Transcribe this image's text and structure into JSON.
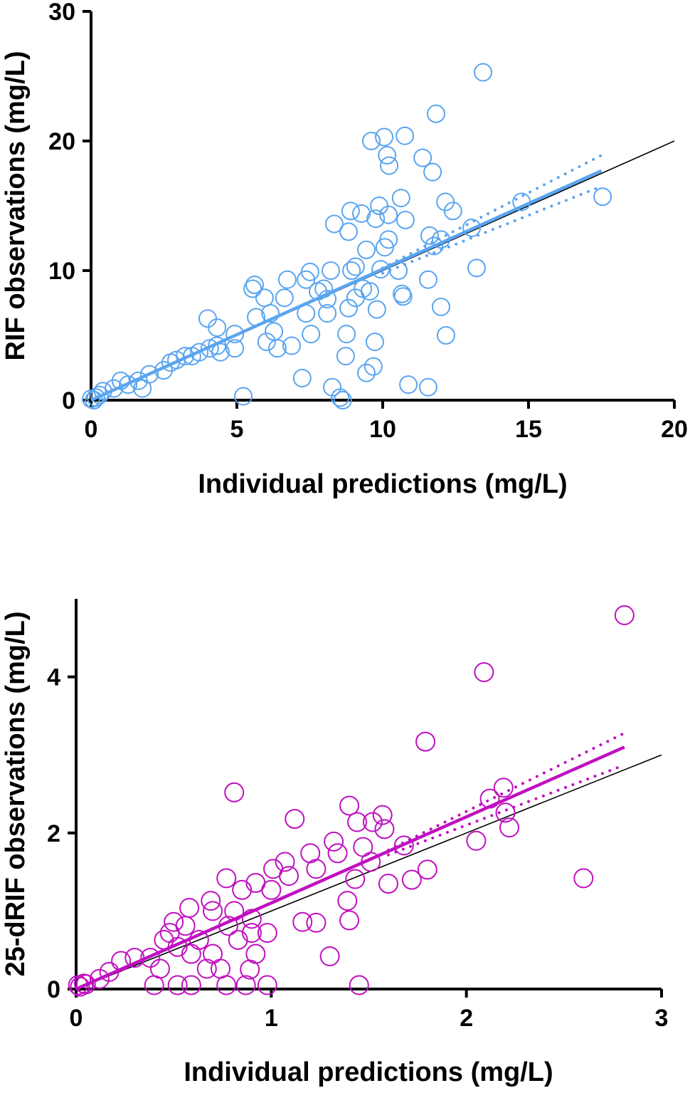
{
  "chart_data": [
    {
      "type": "scatter",
      "xlabel": "Individual predictions (mg/L)",
      "ylabel": "RIF observations (mg/L)",
      "xlim": [
        0,
        20
      ],
      "ylim": [
        0,
        30
      ],
      "xticks": [
        "0",
        "5",
        "10",
        "15",
        "20"
      ],
      "yticks": [
        "0",
        "10",
        "20",
        "30"
      ],
      "color": "#5aa5f0",
      "grid": false,
      "identity_line": [
        [
          0,
          0
        ],
        [
          20,
          20
        ]
      ],
      "fit_line": [
        [
          0,
          0
        ],
        [
          17.5,
          17.7
        ]
      ],
      "fit_ci_upper": [
        [
          10,
          10.2
        ],
        [
          17.5,
          18.9
        ]
      ],
      "fit_ci_lower": [
        [
          10,
          9.8
        ],
        [
          17.5,
          16.5
        ]
      ],
      "points": [
        [
          13.44,
          25.3
        ],
        [
          11.83,
          22.1
        ],
        [
          10.76,
          20.4
        ],
        [
          10.05,
          20.3
        ],
        [
          9.61,
          20.0
        ],
        [
          10.15,
          18.9
        ],
        [
          10.22,
          18.1
        ],
        [
          11.37,
          18.7
        ],
        [
          11.71,
          17.6
        ],
        [
          17.54,
          15.7
        ],
        [
          14.76,
          15.3
        ],
        [
          10.63,
          15.6
        ],
        [
          9.88,
          15.0
        ],
        [
          12.15,
          15.3
        ],
        [
          12.41,
          14.6
        ],
        [
          8.9,
          14.6
        ],
        [
          9.27,
          14.4
        ],
        [
          10.2,
          14.3
        ],
        [
          9.76,
          14.0
        ],
        [
          10.78,
          13.9
        ],
        [
          8.34,
          13.6
        ],
        [
          8.83,
          13.0
        ],
        [
          13.05,
          13.3
        ],
        [
          11.61,
          12.7
        ],
        [
          10.2,
          12.4
        ],
        [
          12.0,
          12.4
        ],
        [
          11.76,
          11.9
        ],
        [
          10.07,
          11.8
        ],
        [
          9.44,
          11.6
        ],
        [
          13.22,
          10.2
        ],
        [
          9.07,
          10.3
        ],
        [
          8.93,
          10.0
        ],
        [
          9.93,
          10.1
        ],
        [
          10.54,
          10.0
        ],
        [
          8.22,
          10.0
        ],
        [
          7.51,
          9.9
        ],
        [
          6.73,
          9.3
        ],
        [
          7.37,
          9.3
        ],
        [
          11.56,
          9.3
        ],
        [
          5.61,
          8.9
        ],
        [
          5.54,
          8.6
        ],
        [
          7.98,
          8.6
        ],
        [
          9.32,
          8.6
        ],
        [
          9.56,
          8.4
        ],
        [
          7.78,
          8.4
        ],
        [
          10.66,
          8.2
        ],
        [
          10.7,
          8.0
        ],
        [
          6.63,
          7.9
        ],
        [
          5.95,
          7.9
        ],
        [
          8.1,
          7.8
        ],
        [
          9.07,
          7.9
        ],
        [
          6.15,
          6.7
        ],
        [
          4.0,
          6.3
        ],
        [
          7.37,
          6.7
        ],
        [
          9.8,
          7.0
        ],
        [
          12.0,
          7.2
        ],
        [
          4.32,
          5.6
        ],
        [
          8.83,
          7.1
        ],
        [
          8.1,
          6.7
        ],
        [
          5.66,
          6.4
        ],
        [
          4.93,
          5.1
        ],
        [
          6.27,
          5.3
        ],
        [
          8.76,
          5.1
        ],
        [
          12.17,
          5.0
        ],
        [
          7.54,
          5.1
        ],
        [
          9.73,
          4.5
        ],
        [
          6.02,
          4.5
        ],
        [
          6.88,
          4.2
        ],
        [
          6.39,
          4.0
        ],
        [
          4.32,
          4.2
        ],
        [
          4.93,
          4.0
        ],
        [
          8.73,
          3.4
        ],
        [
          4.07,
          4.0
        ],
        [
          3.71,
          3.7
        ],
        [
          3.22,
          3.4
        ],
        [
          2.73,
          2.9
        ],
        [
          9.68,
          2.6
        ],
        [
          9.44,
          2.1
        ],
        [
          7.24,
          1.7
        ],
        [
          2.49,
          2.3
        ],
        [
          2.0,
          2.0
        ],
        [
          1.63,
          1.5
        ],
        [
          1.27,
          1.2
        ],
        [
          0.78,
          0.9
        ],
        [
          10.88,
          1.2
        ],
        [
          11.56,
          1.0
        ],
        [
          8.27,
          1.0
        ],
        [
          5.22,
          0.3
        ],
        [
          8.54,
          0.2
        ],
        [
          8.63,
          0.0
        ],
        [
          0.29,
          0.4
        ],
        [
          0.0,
          0.1
        ],
        [
          0.17,
          0.2
        ],
        [
          0.41,
          0.7
        ],
        [
          1.76,
          0.9
        ],
        [
          1.02,
          1.5
        ],
        [
          2.93,
          3.1
        ],
        [
          3.46,
          3.4
        ],
        [
          4.44,
          3.7
        ],
        [
          0.1,
          0.0
        ]
      ]
    },
    {
      "type": "scatter",
      "xlabel": "Individual predictions (mg/L)",
      "ylabel": "25-dRIF observations (mg/L)",
      "xlim": [
        0,
        3
      ],
      "ylim": [
        0,
        5
      ],
      "xticks": [
        "0",
        "1",
        "2",
        "3"
      ],
      "yticks": [
        "0",
        "2",
        "4"
      ],
      "color": "#c010c0",
      "grid": false,
      "identity_line": [
        [
          0,
          0
        ],
        [
          3,
          3
        ]
      ],
      "fit_line": [
        [
          0,
          0
        ],
        [
          2.81,
          3.1
        ]
      ],
      "fit_ci_upper": [
        [
          1.6,
          1.78
        ],
        [
          2.81,
          3.28
        ]
      ],
      "fit_ci_lower": [
        [
          1.6,
          1.72
        ],
        [
          2.81,
          2.87
        ]
      ],
      "points": [
        [
          2.81,
          4.79
        ],
        [
          2.09,
          4.06
        ],
        [
          1.79,
          3.17
        ],
        [
          0.81,
          2.52
        ],
        [
          2.19,
          2.58
        ],
        [
          2.12,
          2.44
        ],
        [
          2.2,
          2.26
        ],
        [
          2.22,
          2.07
        ],
        [
          2.05,
          1.9
        ],
        [
          2.6,
          1.42
        ],
        [
          1.8,
          1.53
        ],
        [
          1.72,
          1.4
        ],
        [
          1.68,
          1.84
        ],
        [
          1.6,
          1.35
        ],
        [
          1.58,
          2.05
        ],
        [
          1.57,
          2.23
        ],
        [
          1.52,
          2.14
        ],
        [
          1.4,
          2.35
        ],
        [
          1.44,
          2.14
        ],
        [
          1.12,
          2.18
        ],
        [
          1.32,
          1.89
        ],
        [
          1.34,
          1.74
        ],
        [
          1.47,
          1.82
        ],
        [
          1.2,
          1.74
        ],
        [
          1.23,
          1.54
        ],
        [
          1.51,
          1.63
        ],
        [
          1.43,
          1.41
        ],
        [
          1.39,
          1.13
        ],
        [
          1.4,
          0.88
        ],
        [
          1.3,
          0.42
        ],
        [
          1.45,
          0.05
        ],
        [
          1.16,
          0.86
        ],
        [
          1.23,
          0.85
        ],
        [
          1.07,
          1.63
        ],
        [
          1.01,
          1.54
        ],
        [
          1.09,
          1.45
        ],
        [
          1.0,
          1.27
        ],
        [
          0.92,
          1.36
        ],
        [
          0.85,
          1.27
        ],
        [
          0.77,
          1.42
        ],
        [
          0.69,
          1.13
        ],
        [
          0.58,
          1.04
        ],
        [
          0.7,
          1.0
        ],
        [
          0.81,
          1.0
        ],
        [
          0.9,
          0.9
        ],
        [
          0.98,
          0.72
        ],
        [
          0.92,
          0.45
        ],
        [
          0.89,
          0.25
        ],
        [
          0.98,
          0.05
        ],
        [
          0.87,
          0.05
        ],
        [
          0.77,
          0.05
        ],
        [
          0.74,
          0.26
        ],
        [
          0.7,
          0.45
        ],
        [
          0.63,
          0.63
        ],
        [
          0.56,
          0.81
        ],
        [
          0.48,
          0.72
        ],
        [
          0.45,
          0.63
        ],
        [
          0.52,
          0.54
        ],
        [
          0.59,
          0.45
        ],
        [
          0.67,
          0.26
        ],
        [
          0.59,
          0.05
        ],
        [
          0.52,
          0.05
        ],
        [
          0.4,
          0.05
        ],
        [
          0.38,
          0.4
        ],
        [
          0.3,
          0.4
        ],
        [
          0.23,
          0.36
        ],
        [
          0.17,
          0.22
        ],
        [
          0.12,
          0.13
        ],
        [
          0.05,
          0.06
        ],
        [
          0.01,
          0.05
        ],
        [
          0.43,
          0.26
        ],
        [
          0.5,
          0.86
        ],
        [
          0.78,
          0.81
        ],
        [
          0.83,
          0.63
        ],
        [
          0.9,
          0.72
        ],
        [
          0.02,
          0.03
        ],
        [
          0.04,
          0.07
        ]
      ]
    }
  ]
}
